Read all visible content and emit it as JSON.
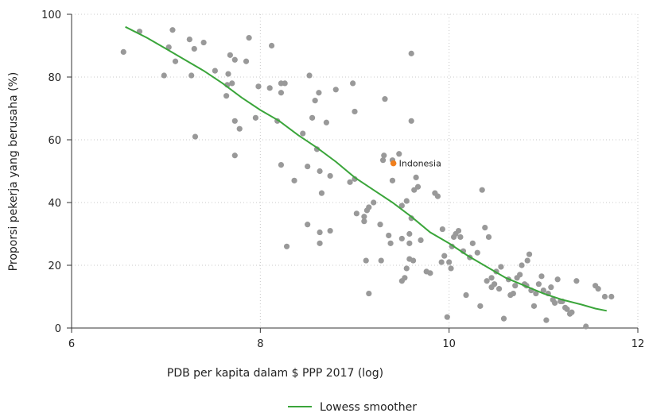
{
  "chart_data": {
    "type": "scatter",
    "xlabel": "PDB per kapita dalam $ PPP 2017 (log)",
    "ylabel": "Proporsi pekerja yang berusaha (%)",
    "xlim": [
      6,
      12
    ],
    "ylim": [
      0,
      100
    ],
    "xticks": [
      6,
      8,
      10,
      12
    ],
    "yticks": [
      0,
      20,
      40,
      60,
      80,
      100
    ],
    "grid": true,
    "legend_placement": "bottom-center",
    "colors": {
      "points": "#999999",
      "highlight": "#f07f1c",
      "smoother": "#3aa53a"
    },
    "series": [
      {
        "name": "",
        "kind": "points",
        "points": [
          [
            6.55,
            88
          ],
          [
            6.72,
            94.5
          ],
          [
            6.98,
            80.5
          ],
          [
            7.03,
            89.5
          ],
          [
            7.07,
            95
          ],
          [
            7.1,
            85
          ],
          [
            7.25,
            92
          ],
          [
            7.27,
            80.5
          ],
          [
            7.3,
            89
          ],
          [
            7.31,
            61
          ],
          [
            7.4,
            91
          ],
          [
            7.52,
            82
          ],
          [
            7.64,
            74
          ],
          [
            7.65,
            77.5
          ],
          [
            7.66,
            81
          ],
          [
            7.68,
            87
          ],
          [
            7.7,
            78
          ],
          [
            7.73,
            85.5
          ],
          [
            7.78,
            63.5
          ],
          [
            7.73,
            66
          ],
          [
            7.73,
            55
          ],
          [
            7.85,
            85
          ],
          [
            7.88,
            92.5
          ],
          [
            7.95,
            67
          ],
          [
            7.98,
            77
          ],
          [
            8.1,
            76.5
          ],
          [
            8.12,
            90
          ],
          [
            8.18,
            66
          ],
          [
            8.22,
            52
          ],
          [
            8.22,
            75
          ],
          [
            8.22,
            78
          ],
          [
            8.26,
            78
          ],
          [
            8.28,
            26
          ],
          [
            8.36,
            47
          ],
          [
            8.45,
            62
          ],
          [
            8.5,
            51.5
          ],
          [
            8.5,
            33
          ],
          [
            8.52,
            80.5
          ],
          [
            8.55,
            67
          ],
          [
            8.58,
            72.5
          ],
          [
            8.6,
            57
          ],
          [
            8.62,
            75
          ],
          [
            8.63,
            50
          ],
          [
            8.65,
            43
          ],
          [
            8.63,
            30.5
          ],
          [
            8.63,
            27
          ],
          [
            8.7,
            65.5
          ],
          [
            8.74,
            31
          ],
          [
            8.74,
            48.5
          ],
          [
            8.8,
            76
          ],
          [
            8.95,
            46.5
          ],
          [
            8.98,
            78
          ],
          [
            9.0,
            69
          ],
          [
            9.0,
            47.5
          ],
          [
            9.02,
            36.5
          ],
          [
            9.1,
            34
          ],
          [
            9.1,
            35.5
          ],
          [
            9.12,
            21.5
          ],
          [
            9.13,
            37.5
          ],
          [
            9.15,
            38.5
          ],
          [
            9.15,
            11
          ],
          [
            9.2,
            40
          ],
          [
            9.27,
            33
          ],
          [
            9.28,
            21.5
          ],
          [
            9.3,
            53.5
          ],
          [
            9.31,
            55
          ],
          [
            9.32,
            73
          ],
          [
            9.36,
            29.5
          ],
          [
            9.38,
            27
          ],
          [
            9.4,
            47
          ],
          [
            9.4,
            53.5
          ],
          [
            9.47,
            55.5
          ],
          [
            9.5,
            28.5
          ],
          [
            9.5,
            39
          ],
          [
            9.53,
            16
          ],
          [
            9.55,
            40.5
          ],
          [
            9.58,
            22
          ],
          [
            9.58,
            27
          ],
          [
            9.6,
            66
          ],
          [
            9.6,
            87.5
          ],
          [
            9.62,
            21.5
          ],
          [
            9.63,
            44
          ],
          [
            9.65,
            48
          ],
          [
            9.67,
            45
          ],
          [
            9.5,
            15
          ],
          [
            9.55,
            19
          ],
          [
            9.58,
            30
          ],
          [
            9.6,
            35
          ],
          [
            9.7,
            28
          ],
          [
            9.76,
            18
          ],
          [
            9.8,
            17.5
          ],
          [
            9.85,
            43
          ],
          [
            9.88,
            42
          ],
          [
            9.92,
            21
          ],
          [
            9.93,
            31.5
          ],
          [
            9.95,
            23
          ],
          [
            9.98,
            3.5
          ],
          [
            10.0,
            21
          ],
          [
            10.02,
            19
          ],
          [
            10.03,
            26
          ],
          [
            10.05,
            29
          ],
          [
            10.07,
            30
          ],
          [
            10.1,
            31
          ],
          [
            10.12,
            29
          ],
          [
            10.15,
            24.5
          ],
          [
            10.18,
            10.5
          ],
          [
            10.22,
            22.5
          ],
          [
            10.25,
            27
          ],
          [
            10.3,
            24
          ],
          [
            10.33,
            7
          ],
          [
            10.35,
            44
          ],
          [
            10.38,
            32
          ],
          [
            10.4,
            15
          ],
          [
            10.42,
            29
          ],
          [
            10.45,
            16
          ],
          [
            10.45,
            13
          ],
          [
            10.48,
            14
          ],
          [
            10.5,
            18
          ],
          [
            10.53,
            12.5
          ],
          [
            10.55,
            19.5
          ],
          [
            10.58,
            3
          ],
          [
            10.63,
            15.5
          ],
          [
            10.65,
            10.5
          ],
          [
            10.68,
            11
          ],
          [
            10.7,
            13.5
          ],
          [
            10.72,
            16
          ],
          [
            10.75,
            17
          ],
          [
            10.77,
            20
          ],
          [
            10.8,
            14
          ],
          [
            10.82,
            13.5
          ],
          [
            10.83,
            21.5
          ],
          [
            10.85,
            23.5
          ],
          [
            10.87,
            12
          ],
          [
            10.9,
            7
          ],
          [
            10.92,
            11
          ],
          [
            10.95,
            14
          ],
          [
            10.98,
            16.5
          ],
          [
            11.0,
            12
          ],
          [
            11.03,
            2.5
          ],
          [
            11.05,
            11
          ],
          [
            11.08,
            13
          ],
          [
            11.1,
            9
          ],
          [
            11.12,
            8
          ],
          [
            11.15,
            15.5
          ],
          [
            11.18,
            8.5
          ],
          [
            11.2,
            8.5
          ],
          [
            11.23,
            6.5
          ],
          [
            11.25,
            6
          ],
          [
            11.28,
            4.5
          ],
          [
            11.3,
            5
          ],
          [
            11.35,
            15
          ],
          [
            11.45,
            0.5
          ],
          [
            11.55,
            13.5
          ],
          [
            11.58,
            12.5
          ],
          [
            11.65,
            10
          ],
          [
            11.72,
            10
          ]
        ]
      },
      {
        "name": "Indonesia",
        "kind": "highlight",
        "points": [
          [
            9.41,
            52.5
          ]
        ]
      },
      {
        "name": "Lowess smoother",
        "kind": "line",
        "points": [
          [
            6.57,
            96
          ],
          [
            6.8,
            92.5
          ],
          [
            7.0,
            89
          ],
          [
            7.2,
            85.5
          ],
          [
            7.4,
            82
          ],
          [
            7.6,
            78
          ],
          [
            7.8,
            73.5
          ],
          [
            8.0,
            69.5
          ],
          [
            8.2,
            66
          ],
          [
            8.4,
            61.5
          ],
          [
            8.6,
            57.5
          ],
          [
            8.8,
            53
          ],
          [
            9.0,
            48
          ],
          [
            9.2,
            44
          ],
          [
            9.4,
            40
          ],
          [
            9.6,
            35.5
          ],
          [
            9.8,
            30.5
          ],
          [
            10.0,
            27
          ],
          [
            10.2,
            23
          ],
          [
            10.4,
            19.5
          ],
          [
            10.6,
            16
          ],
          [
            10.8,
            13.5
          ],
          [
            11.0,
            11
          ],
          [
            11.2,
            9
          ],
          [
            11.4,
            7.5
          ],
          [
            11.55,
            6.2
          ],
          [
            11.67,
            5.5
          ]
        ]
      }
    ],
    "annotations": [
      {
        "text": "Indonesia",
        "x": 9.41,
        "y": 52.5
      }
    ],
    "legend": [
      {
        "label": "Lowess smoother"
      }
    ]
  }
}
